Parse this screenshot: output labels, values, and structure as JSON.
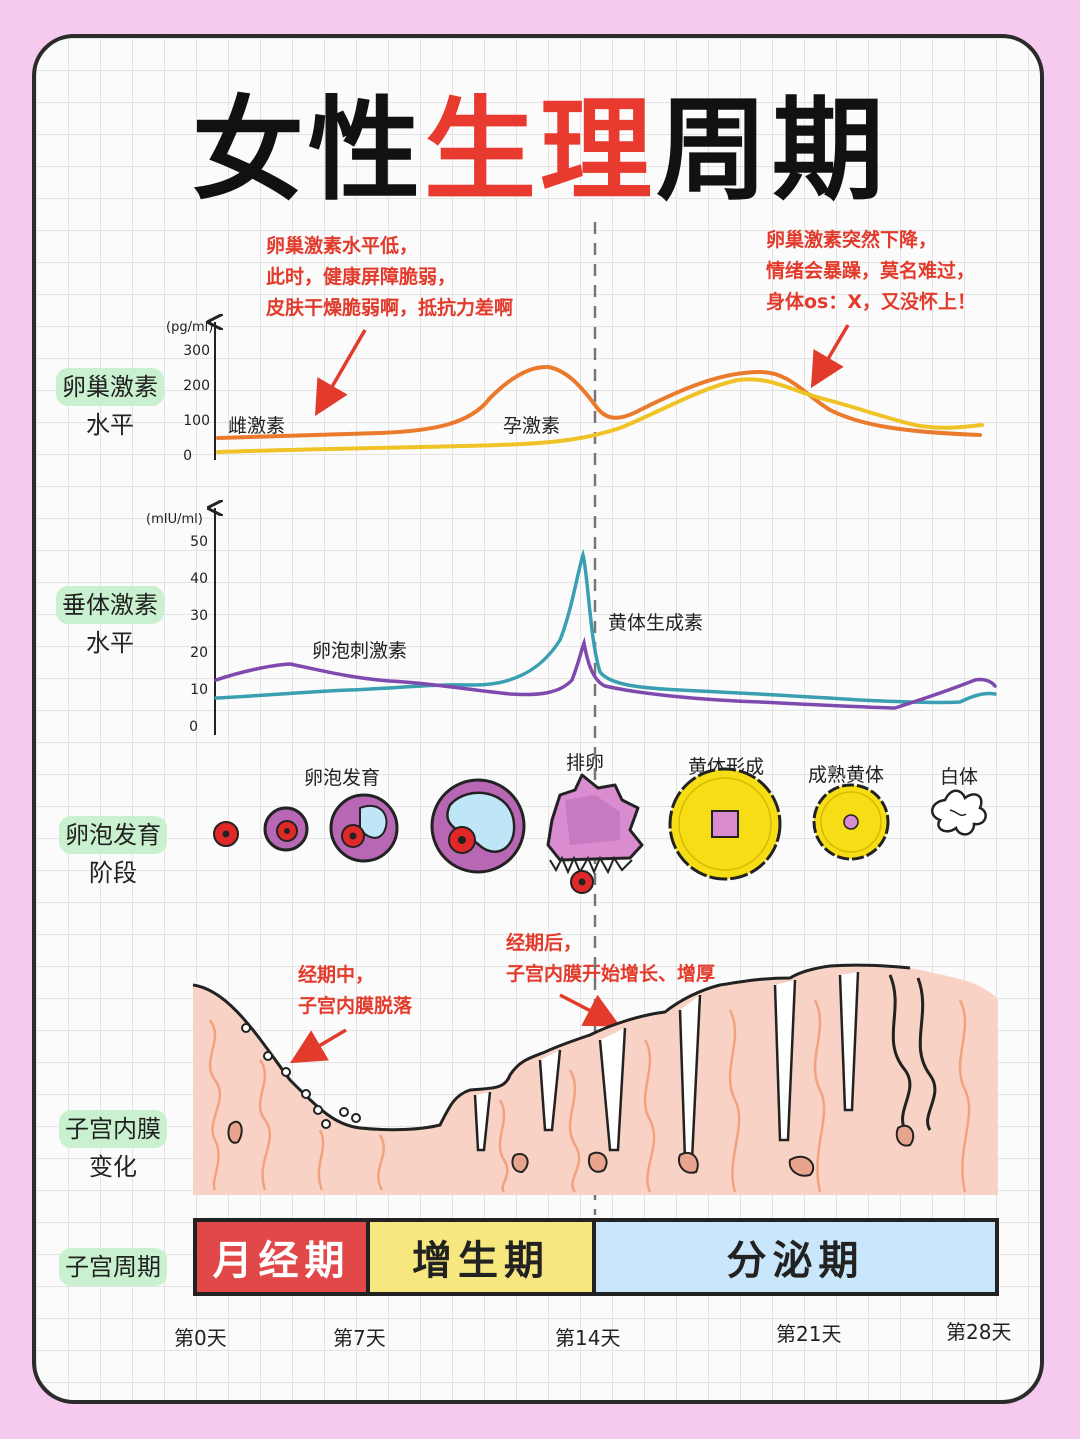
{
  "title": {
    "part1": "女性",
    "part2": "生理",
    "part3": "周期"
  },
  "sections": {
    "ovarian": {
      "line1": "卵巢激素",
      "line2": "水平"
    },
    "pituitary": {
      "line1": "垂体激素",
      "line2": "水平"
    },
    "follicle": {
      "line1": "卵泡发育",
      "line2": "阶段"
    },
    "endometrium": {
      "line1": "子宫内膜",
      "line2": "变化"
    },
    "uterine_cycle": "子宫周期"
  },
  "annotations": {
    "left": [
      "卵巢激素水平低，",
      "此时，健康屏障脆弱，",
      "皮肤干燥脆弱啊，抵抗力差啊"
    ],
    "right": [
      "卵巢激素突然下降，",
      "情绪会暴躁，莫名难过，",
      "身体os：X，又没怀上！"
    ],
    "menses": [
      "经期中，",
      "子宫内膜脱落"
    ],
    "post_menses": [
      "经期后，",
      "子宫内膜开始增长、增厚"
    ]
  },
  "ovarian_chart": {
    "unit": "(pg/ml)",
    "ticks": [
      "300",
      "200",
      "100",
      "0"
    ],
    "labels": {
      "estrogen": "雌激素",
      "progesterone": "孕激素"
    },
    "colors": {
      "estrogen": "#ea7a2c",
      "progesterone": "#efc326"
    }
  },
  "pituitary_chart": {
    "unit": "(mIU/ml)",
    "ticks": [
      "50",
      "40",
      "30",
      "20",
      "10",
      "0"
    ],
    "labels": {
      "fsh": "卵泡刺激素",
      "lh": "黄体生成素"
    },
    "colors": {
      "fsh": "#7e4aae",
      "lh": "#3a9fb0"
    }
  },
  "follicle_stages": {
    "development": "卵泡发育",
    "ovulation": "排卵",
    "corpus_luteum_forming": "黄体形成",
    "mature_corpus_luteum": "成熟黄体",
    "corpus_albicans": "白体"
  },
  "phases": {
    "menstrual": "月经期",
    "proliferative": "增生期",
    "secretory": "分泌期"
  },
  "days": [
    "第0天",
    "第7天",
    "第14天",
    "第21天",
    "第28天"
  ]
}
